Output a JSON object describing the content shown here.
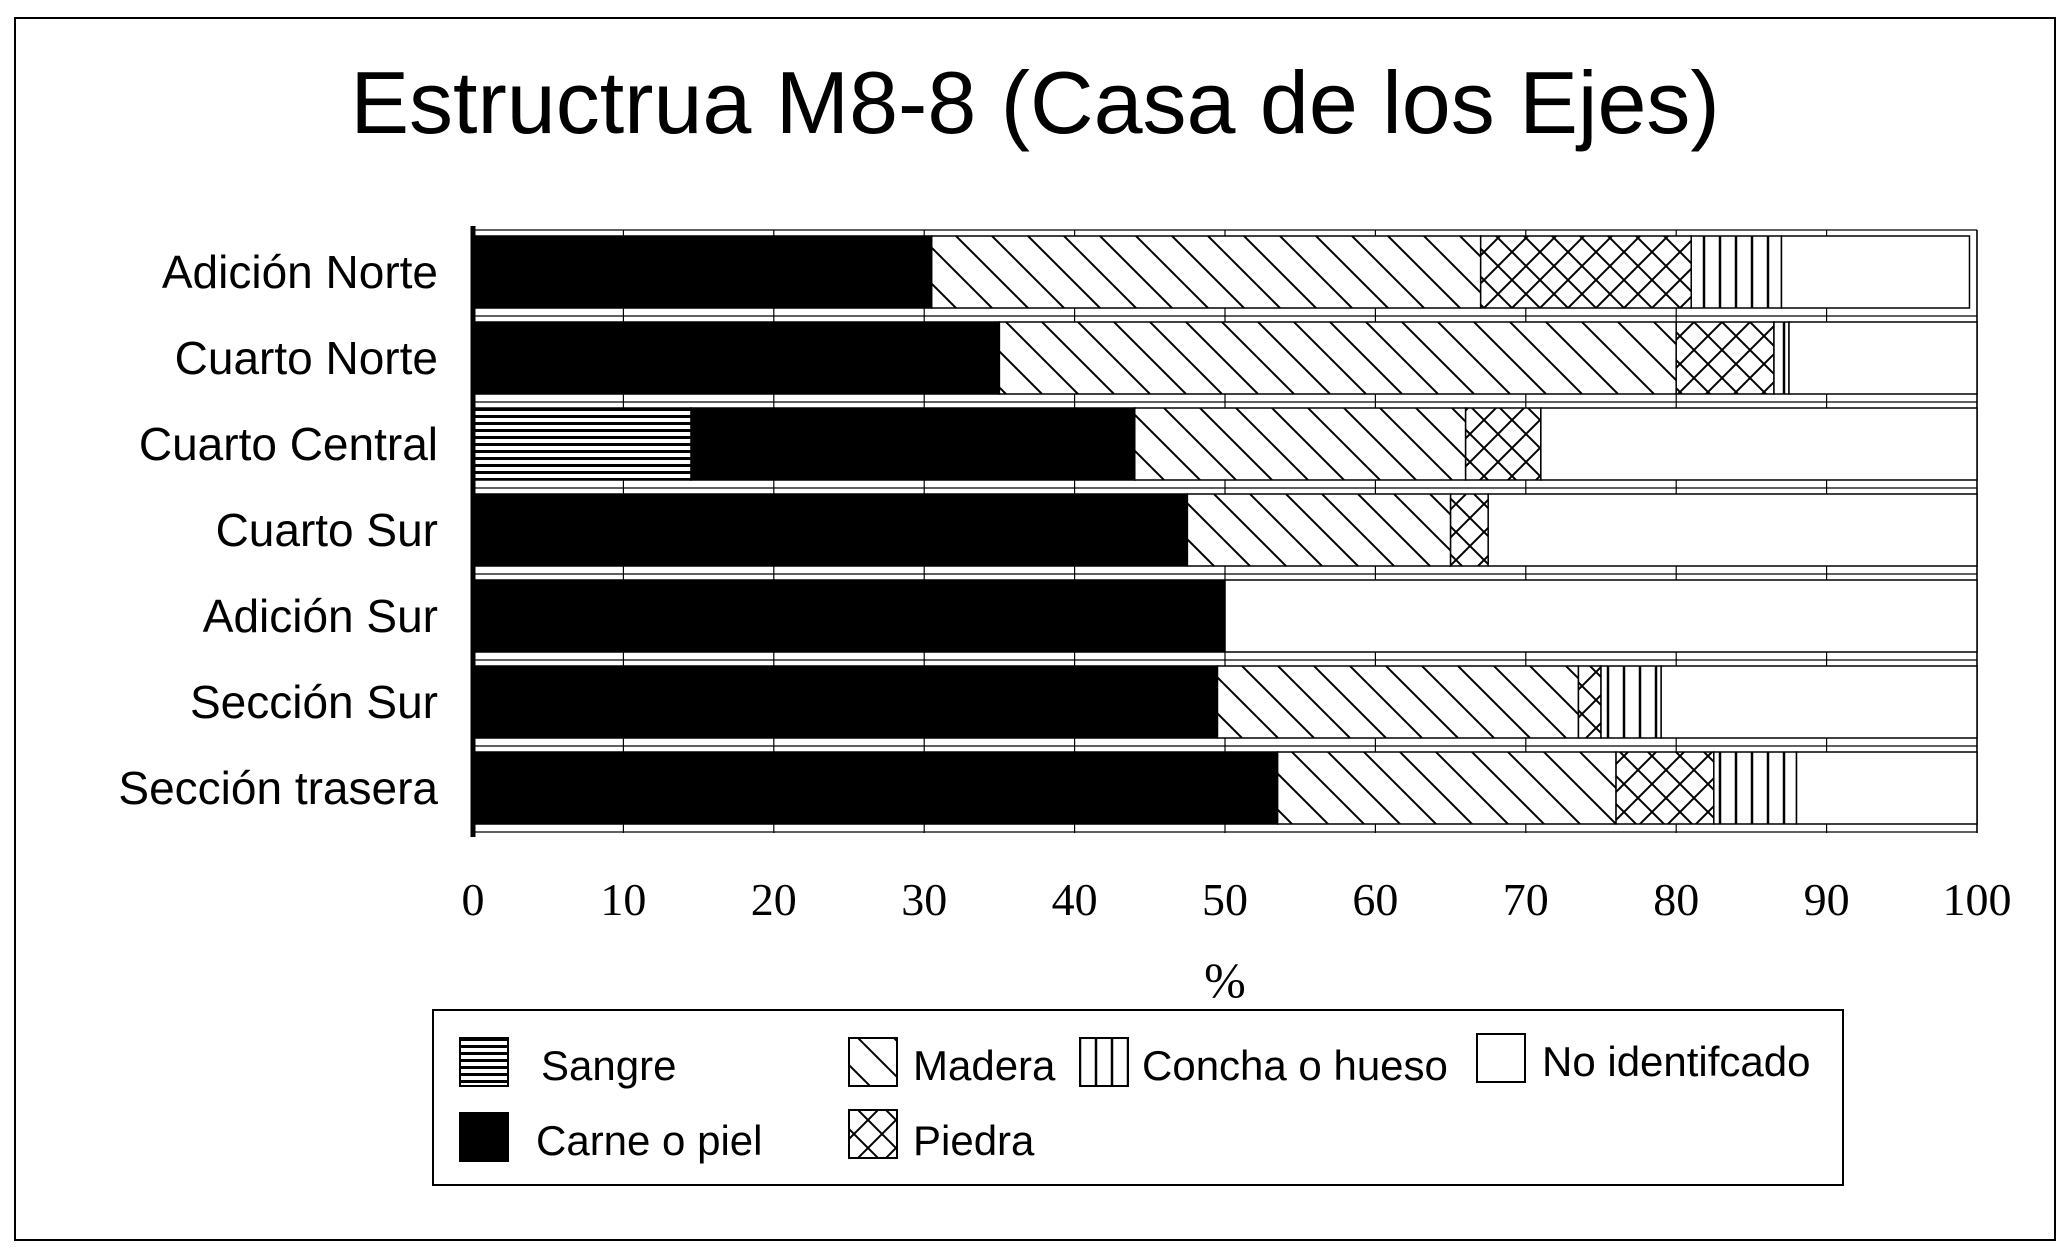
{
  "chart_data": {
    "type": "bar",
    "orientation": "horizontal",
    "stacked": true,
    "title": "Estructrua M8-8 (Casa de los Ejes)",
    "xlabel": "%",
    "ylabel": "",
    "xlim": [
      0,
      100
    ],
    "xticks": [
      "0",
      "10",
      "20",
      "30",
      "40",
      "50",
      "60",
      "70",
      "80",
      "90",
      "100"
    ],
    "grid": true,
    "legend_position": "bottom",
    "categories": [
      "Adición Norte",
      "Cuarto Norte",
      "Cuarto Central",
      "Cuarto Sur",
      "Adición Sur",
      "Sección Sur",
      "Sección trasera"
    ],
    "series": [
      {
        "name": "Sangre",
        "pattern": "horizontal-lines",
        "values": [
          0,
          0,
          14.5,
          0,
          0,
          0,
          0
        ]
      },
      {
        "name": "Carne o piel",
        "pattern": "solid-black",
        "values": [
          30.5,
          35,
          29.5,
          47.5,
          50,
          49.5,
          53.5
        ]
      },
      {
        "name": "Madera",
        "pattern": "diagonal-lines",
        "values": [
          36.5,
          45,
          22,
          17.5,
          0,
          24,
          22.5
        ]
      },
      {
        "name": "Piedra",
        "pattern": "cross-hatch",
        "values": [
          14,
          6.5,
          5,
          2.5,
          0,
          1.5,
          6.5
        ]
      },
      {
        "name": "Concha o hueso",
        "pattern": "vertical-lines",
        "values": [
          6,
          1,
          0,
          0,
          0,
          4,
          5.5
        ]
      },
      {
        "name": "No identifcado",
        "pattern": "white",
        "values": [
          12.5,
          12.5,
          29,
          32.5,
          50,
          21,
          12
        ]
      }
    ],
    "colors": {
      "ink": "#000000",
      "paper": "#ffffff",
      "grid": "#000000"
    }
  }
}
